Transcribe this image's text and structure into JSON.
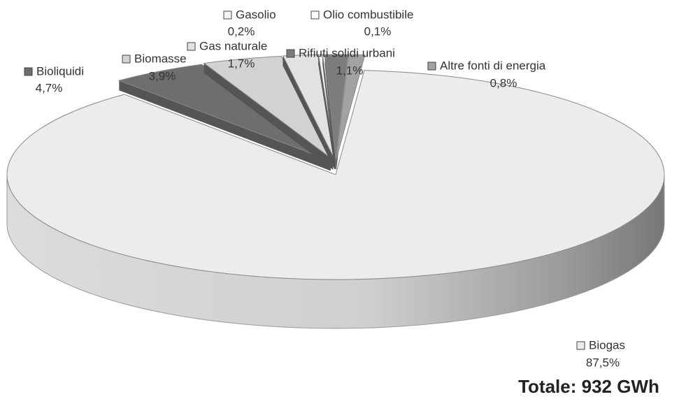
{
  "chart_data": {
    "type": "pie",
    "categories": [
      "Bioliquidi",
      "Biomasse",
      "Gas naturale",
      "Gasolio",
      "Olio combustibile",
      "Rifiuti solidi urbani",
      "Altre fonti di energia",
      "Biogas"
    ],
    "values": [
      4.7,
      3.9,
      1.7,
      0.2,
      0.1,
      1.1,
      0.8,
      87.5
    ],
    "value_labels": [
      "4,7%",
      "3,9%",
      "1,7%",
      "0,2%",
      "0,1%",
      "1,1%",
      "0,8%",
      "87,5%"
    ],
    "colors": [
      "#6e6e6e",
      "#d2d2d2",
      "#e2e2e2",
      "#f4f4f4",
      "#fbfbfb",
      "#7c7c7c",
      "#a2a2a2",
      "#ececec"
    ],
    "annotation": "Totale: 932 GWh"
  }
}
